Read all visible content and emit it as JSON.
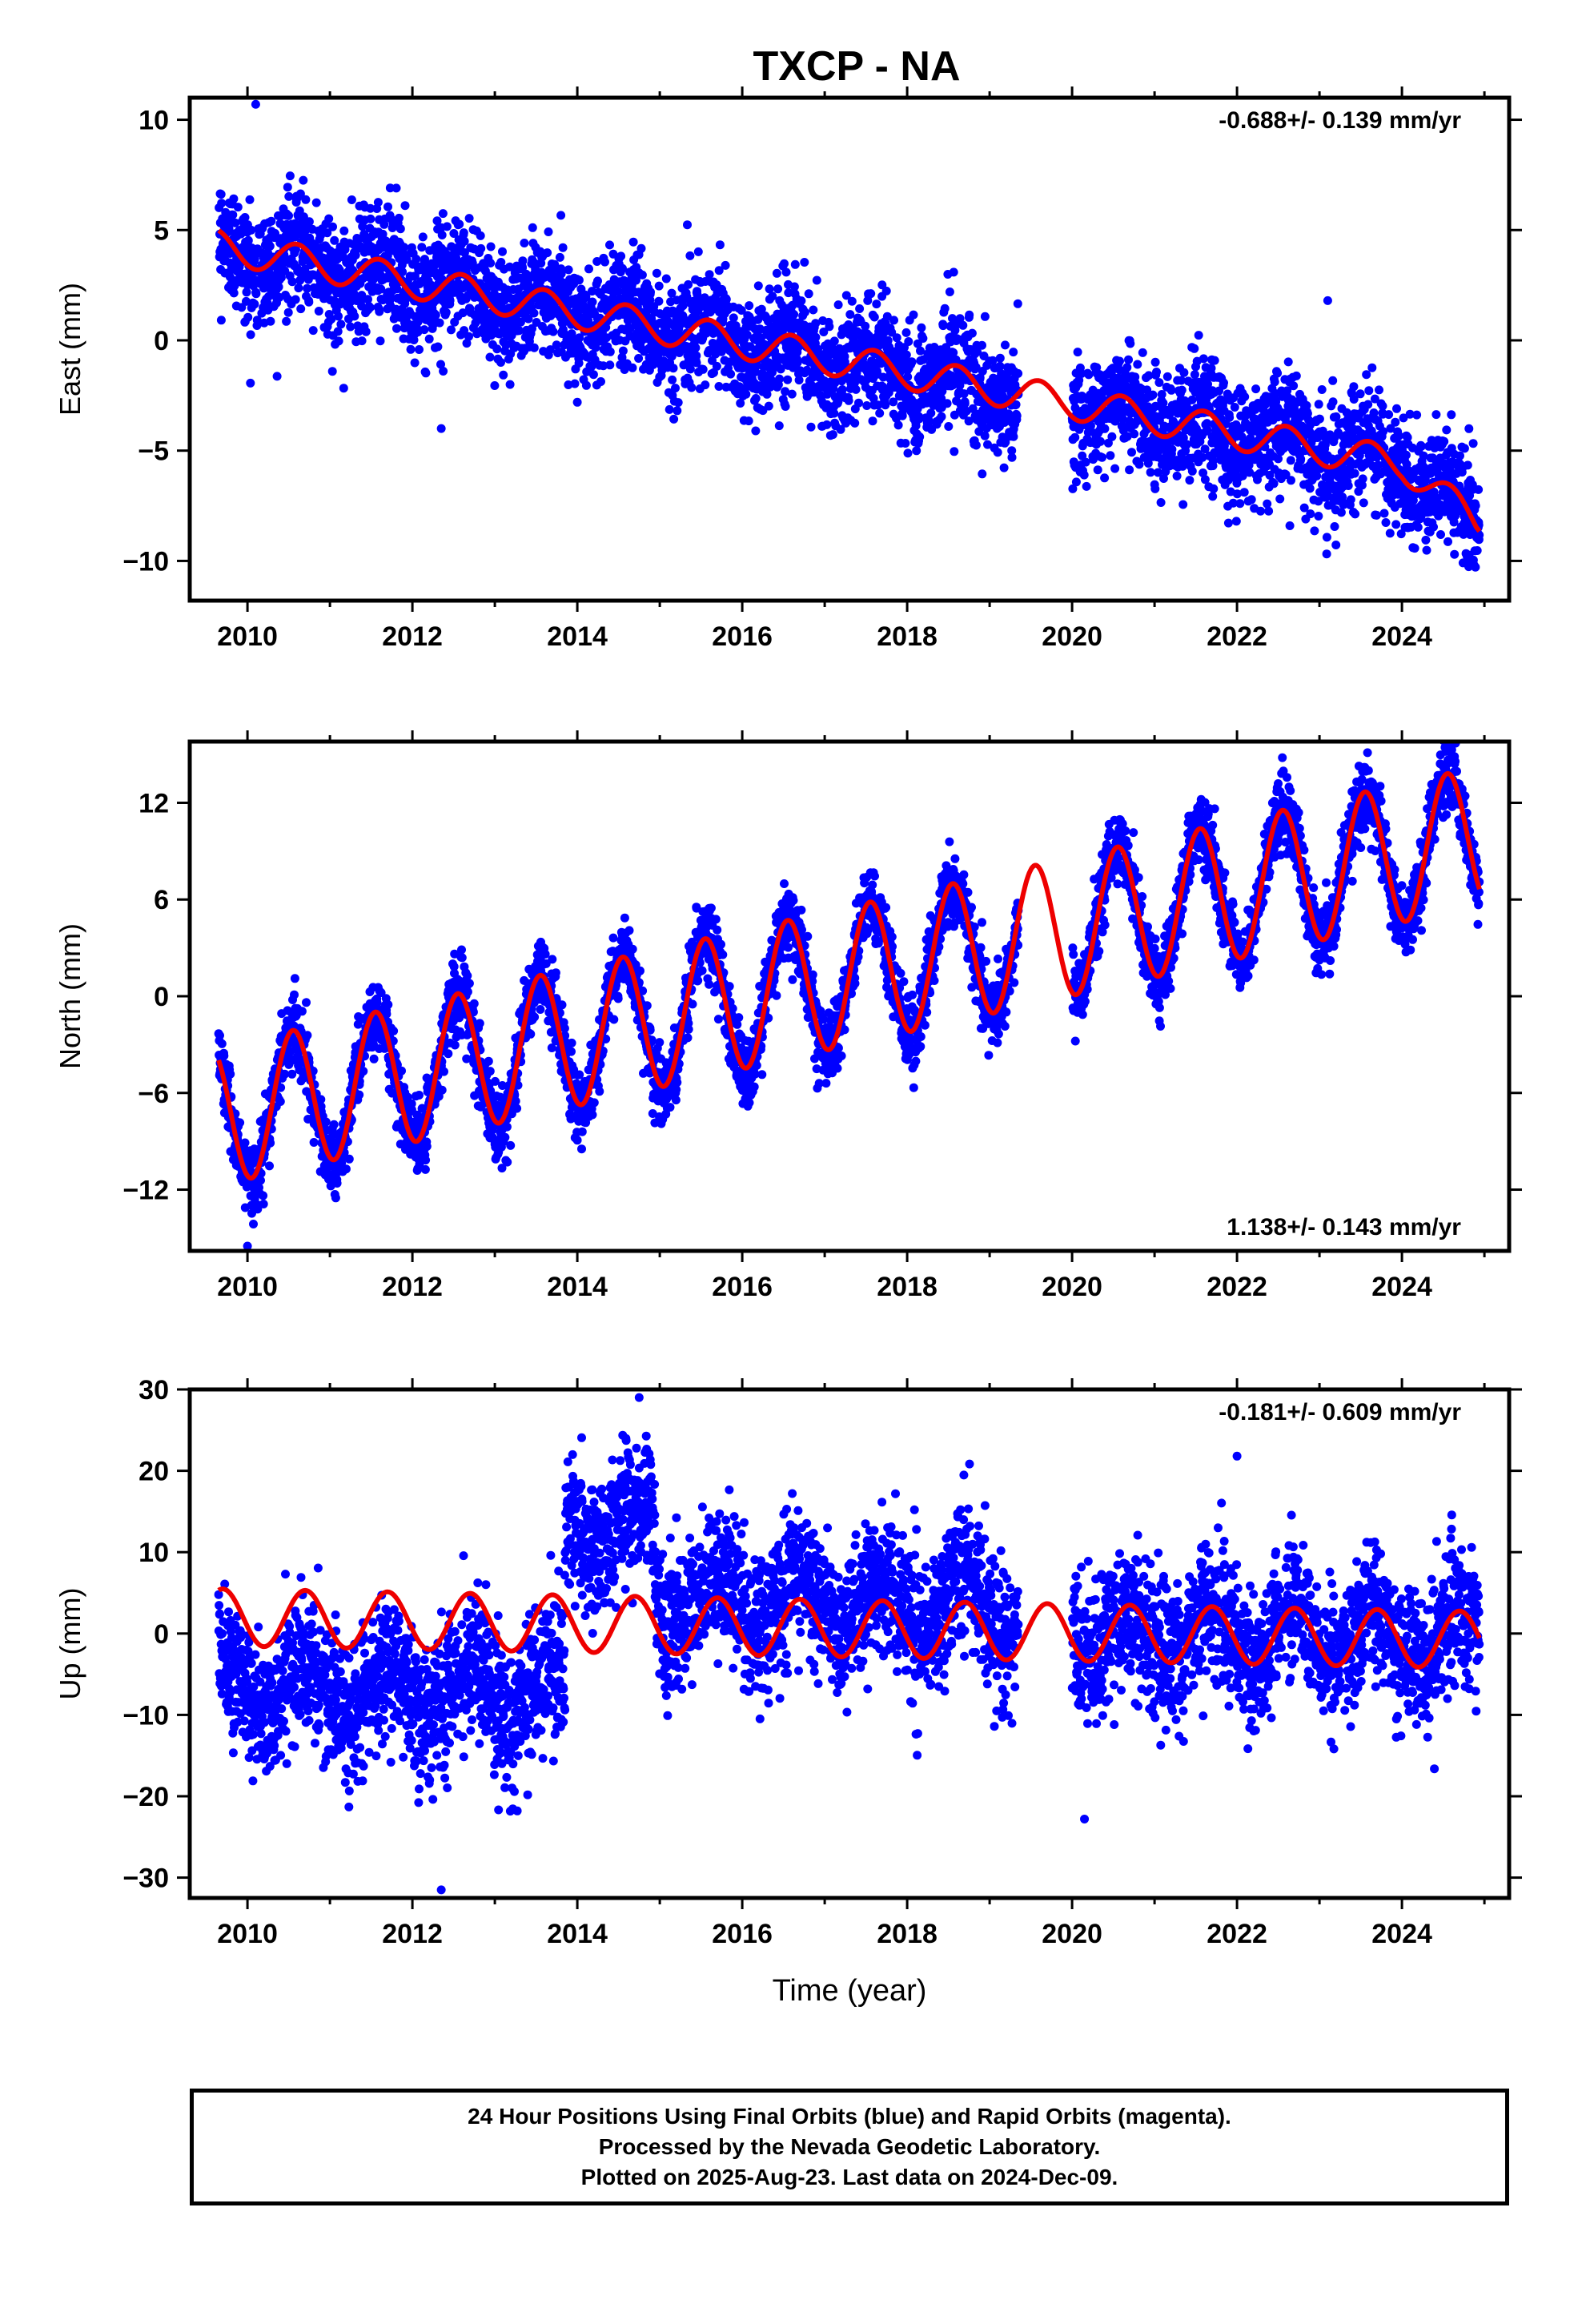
{
  "figure_title": "TXCP - NA",
  "colors": {
    "data": "#0000ff",
    "model": "#ee0000",
    "axis": "#000000"
  },
  "notes": [
    "24 Hour Positions Using Final Orbits (blue) and Rapid Orbits (magenta).",
    "Processed by the Nevada Geodetic Laboratory.",
    "Plotted on 2025-Aug-23. Last data on 2024-Dec-09."
  ],
  "chart_data": [
    {
      "type": "scatter",
      "component": "east",
      "ylabel": "East (mm)",
      "xlabel": "",
      "rate_label": "-0.688+/- 0.139 mm/yr",
      "rate_label_position": "top-right",
      "xlim": [
        2009.3,
        2025.3
      ],
      "ylim": [
        -11.8,
        11
      ],
      "x_ticks": [
        2010,
        2012,
        2014,
        2016,
        2018,
        2020,
        2022,
        2024
      ],
      "x_tick_labels": [
        "2010",
        "2012",
        "2014",
        "2016",
        "2018",
        "2020",
        "2022",
        "2024"
      ],
      "y_ticks": [
        -10,
        -5,
        0,
        5,
        10
      ],
      "y_tick_labels": [
        "−10",
        "−5",
        "0",
        "5",
        "10"
      ],
      "data_range": [
        2009.65,
        2024.94
      ],
      "data_gap": [
        2019.35,
        2020.0
      ],
      "trend": {
        "y_at_2009_6": 4.3,
        "rate_mm_yr": -0.688,
        "bend_year": 2024.0,
        "bend_drop_mm": 2.0,
        "annual_amplitude": 0.75,
        "annual_peak": 2009.6
      },
      "scatter_sigma": 1.3,
      "outliers": [
        {
          "x": 2010.1,
          "y": 10.7
        },
        {
          "x": 2012.35,
          "y": -4.0
        },
        {
          "x": 2023.1,
          "y": 1.8
        }
      ],
      "series": [
        {
          "name": "24 Hour Positions Using Final Orbits (blue)",
          "kind": "scatter",
          "color": "#0000ff"
        },
        {
          "name": "model",
          "kind": "line",
          "color": "#ee0000"
        }
      ]
    },
    {
      "type": "scatter",
      "component": "north",
      "ylabel": "North (mm)",
      "xlabel": "",
      "rate_label": "1.138+/- 0.143 mm/yr",
      "rate_label_position": "bottom-right",
      "xlim": [
        2009.3,
        2025.3
      ],
      "ylim": [
        -15.8,
        15.8
      ],
      "x_ticks": [
        2010,
        2012,
        2014,
        2016,
        2018,
        2020,
        2022,
        2024
      ],
      "x_tick_labels": [
        "2010",
        "2012",
        "2014",
        "2016",
        "2018",
        "2020",
        "2022",
        "2024"
      ],
      "y_ticks": [
        -12,
        -6,
        0,
        6,
        12
      ],
      "y_tick_labels": [
        "−12",
        "−6",
        "0",
        "6",
        "12"
      ],
      "data_range": [
        2009.65,
        2024.94
      ],
      "data_gap": [
        2019.35,
        2020.0
      ],
      "trend": {
        "y_at_2009_6": -7.5,
        "rate_mm_yr": 1.138,
        "bend_year": 2024.0,
        "bend_drop_mm": 0,
        "annual_amplitude": 4.3,
        "annual_peak": 2009.55
      },
      "scatter_sigma": 1.1,
      "outliers": [
        {
          "x": 2022.55,
          "y": 14.8
        },
        {
          "x": 2023.55,
          "y": 14.2
        },
        {
          "x": 2010.0,
          "y": -15.5
        }
      ],
      "series": [
        {
          "name": "24 Hour Positions Using Final Orbits (blue)",
          "kind": "scatter",
          "color": "#0000ff"
        },
        {
          "name": "model",
          "kind": "line",
          "color": "#ee0000"
        }
      ]
    },
    {
      "type": "scatter",
      "component": "up",
      "ylabel": "Up (mm)",
      "xlabel": "Time (year)",
      "rate_label": "-0.181+/- 0.609 mm/yr",
      "rate_label_position": "top-right",
      "xlim": [
        2009.3,
        2025.3
      ],
      "ylim": [
        -32.5,
        30
      ],
      "x_ticks": [
        2010,
        2012,
        2014,
        2016,
        2018,
        2020,
        2022,
        2024
      ],
      "x_tick_labels": [
        "2010",
        "2012",
        "2014",
        "2016",
        "2018",
        "2020",
        "2022",
        "2024"
      ],
      "y_ticks": [
        -30,
        -20,
        -10,
        0,
        10,
        20,
        30
      ],
      "y_tick_labels": [
        "−30",
        "−20",
        "−10",
        "0",
        "10",
        "20",
        "30"
      ],
      "data_range": [
        2009.65,
        2024.94
      ],
      "data_gap": [
        2019.35,
        2020.0
      ],
      "trend": {
        "y_at_2009_6": 2.0,
        "rate_mm_yr": -0.181,
        "bend_year": 2024.0,
        "bend_drop_mm": 0,
        "annual_amplitude": 3.5,
        "annual_peak": 2009.7
      },
      "data_offsets": [
        {
          "from": 2009.65,
          "to": 2013.85,
          "mean": -6.5
        },
        {
          "from": 2013.85,
          "to": 2014.95,
          "mean": 14.0
        },
        {
          "from": 2014.95,
          "to": 2019.4,
          "mean": 5.0
        },
        {
          "from": 2019.95,
          "to": 2025.0,
          "mean": 2.0
        }
      ],
      "scatter_sigma": 4.2,
      "outliers": [
        {
          "x": 2012.35,
          "y": -31.5
        },
        {
          "x": 2014.75,
          "y": 29.0
        },
        {
          "x": 2022.0,
          "y": 21.8
        },
        {
          "x": 2020.15,
          "y": -22.8
        }
      ],
      "series": [
        {
          "name": "24 Hour Positions Using Final Orbits (blue)",
          "kind": "scatter",
          "color": "#0000ff"
        },
        {
          "name": "model",
          "kind": "line",
          "color": "#ee0000"
        }
      ]
    }
  ]
}
